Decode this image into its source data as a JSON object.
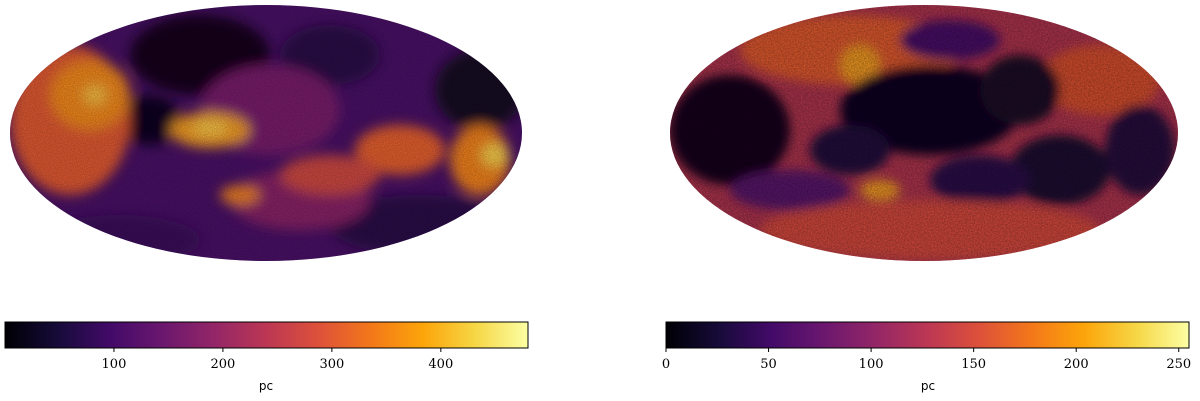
{
  "panels": [
    {
      "id": "left",
      "colorbar": {
        "cmap": "inferno",
        "range": [
          0,
          480
        ],
        "ticks": [
          100,
          200,
          300,
          400
        ],
        "tick_labels": [
          "100",
          "200",
          "300",
          "400"
        ],
        "label": "pc"
      }
    },
    {
      "id": "right",
      "colorbar": {
        "cmap": "inferno",
        "range": [
          0,
          255
        ],
        "ticks": [
          0,
          50,
          100,
          150,
          200,
          250
        ],
        "tick_labels": [
          "0",
          "50",
          "100",
          "150",
          "200",
          "250"
        ],
        "label": "pc"
      }
    }
  ]
}
